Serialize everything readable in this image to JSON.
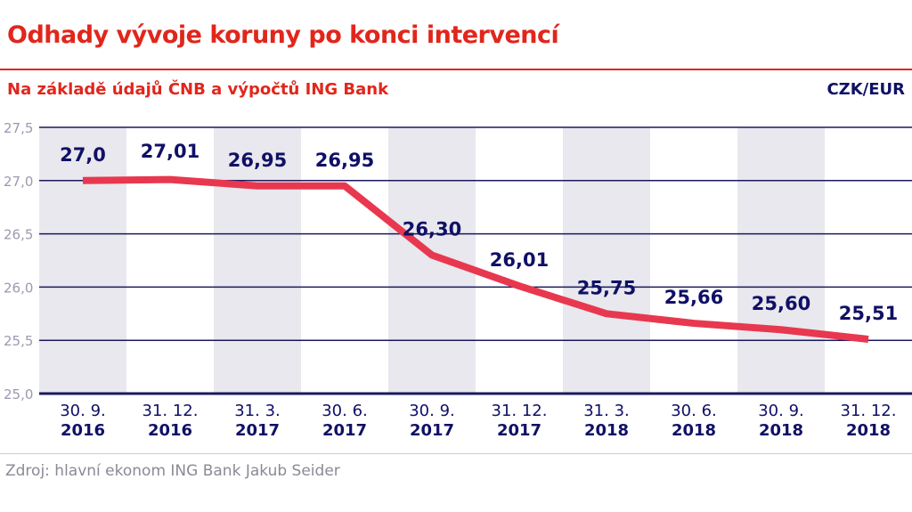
{
  "title": "Odhady vývoje koruny po konci intervencí",
  "subtitle": "Na základě údajů ČNB a výpočtů ING Bank",
  "unit": "CZK/EUR",
  "source": "Zdroj: hlavní ekonom ING Bank Jakub Seider",
  "colors": {
    "title": "#e1261c",
    "line": "#e8384f",
    "text": "#101066",
    "band": "#e8e8ee",
    "grid": "#1a1a5e"
  },
  "chart_data": {
    "type": "line",
    "categories": [
      [
        "30. 9.",
        "2016"
      ],
      [
        "31. 12.",
        "2016"
      ],
      [
        "31. 3.",
        "2017"
      ],
      [
        "30. 6.",
        "2017"
      ],
      [
        "30. 9.",
        "2017"
      ],
      [
        "31. 12.",
        "2017"
      ],
      [
        "31. 3.",
        "2018"
      ],
      [
        "30. 6.",
        "2018"
      ],
      [
        "30. 9.",
        "2018"
      ],
      [
        "31. 12.",
        "2018"
      ]
    ],
    "values": [
      27.0,
      27.01,
      26.95,
      26.95,
      26.3,
      26.01,
      25.75,
      25.66,
      25.6,
      25.51
    ],
    "labels": [
      "27,0",
      "27,01",
      "26,95",
      "26,95",
      "26,30",
      "26,01",
      "25,75",
      "25,66",
      "25,60",
      "25,51"
    ],
    "yticks": [
      "25,0",
      "25,5",
      "26,0",
      "26,5",
      "27,0",
      "27,5"
    ],
    "ylim": [
      25.0,
      27.5
    ],
    "grid": true
  }
}
